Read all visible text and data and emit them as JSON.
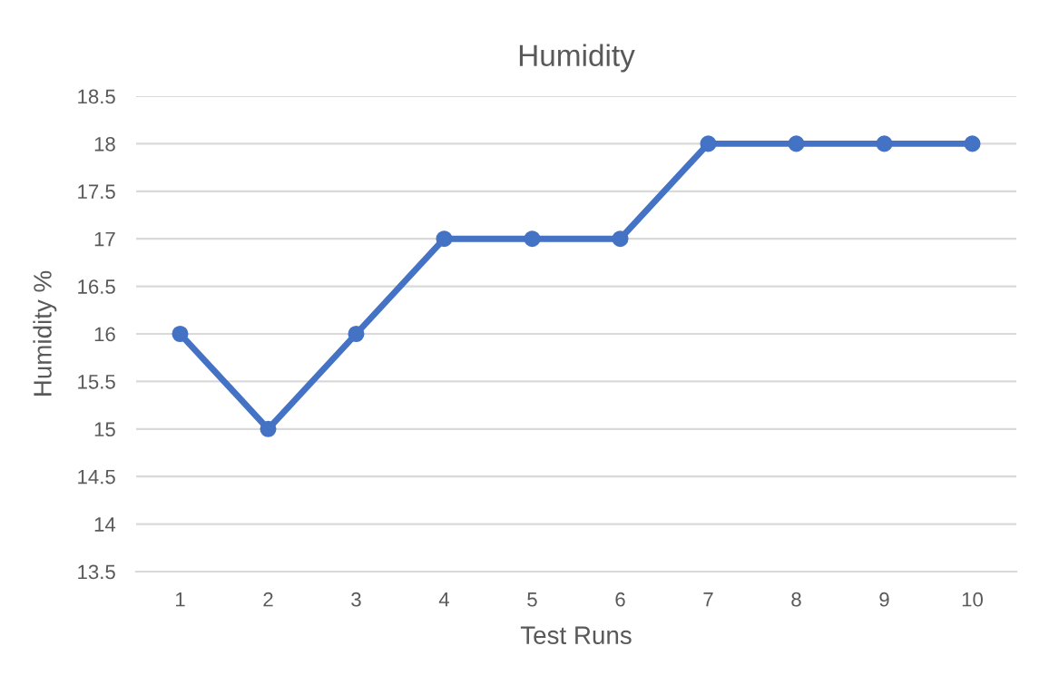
{
  "chart_data": {
    "type": "line",
    "title": "Humidity",
    "xlabel": "Test Runs",
    "ylabel": "Humidity %",
    "categories": [
      "1",
      "2",
      "3",
      "4",
      "5",
      "6",
      "7",
      "8",
      "9",
      "10"
    ],
    "series": [
      {
        "color": "#4472c4",
        "values": [
          16,
          15,
          16,
          17,
          17,
          17,
          18,
          18,
          18,
          18
        ]
      }
    ],
    "ylim": [
      13.5,
      18.5
    ],
    "yticks": [
      13.5,
      14,
      14.5,
      15,
      15.5,
      16,
      16.5,
      17,
      17.5,
      18,
      18.5
    ],
    "grid": "y",
    "legend": false,
    "marker": "circle",
    "line_style": "solid"
  }
}
